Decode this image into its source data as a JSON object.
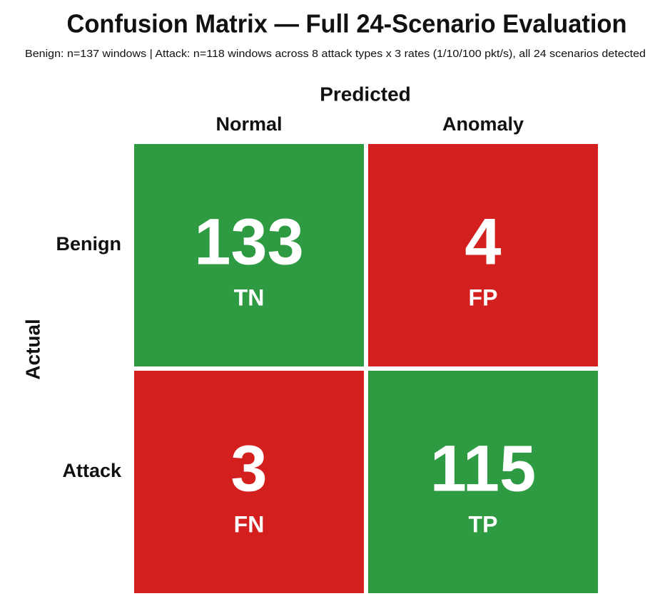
{
  "chart_data": {
    "type": "heatmap",
    "title": "Confusion Matrix — Full 24-Scenario Evaluation",
    "subtitle": "Benign: n=137 windows | Attack: n=118 windows across 8 attack types x 3 rates (1/10/100 pkt/s), all 24 scenarios detected",
    "x_label": "Predicted",
    "y_label": "Actual",
    "x_categories": [
      "Normal",
      "Anomaly"
    ],
    "y_categories": [
      "Benign",
      "Attack"
    ],
    "values": [
      [
        133,
        4
      ],
      [
        3,
        115
      ]
    ],
    "cell_labels": [
      [
        "TN",
        "FP"
      ],
      [
        "FN",
        "TP"
      ]
    ],
    "colors": [
      [
        "#2e9b43",
        "#d41f1f"
      ],
      [
        "#d41f1f",
        "#2e9b43"
      ]
    ]
  }
}
